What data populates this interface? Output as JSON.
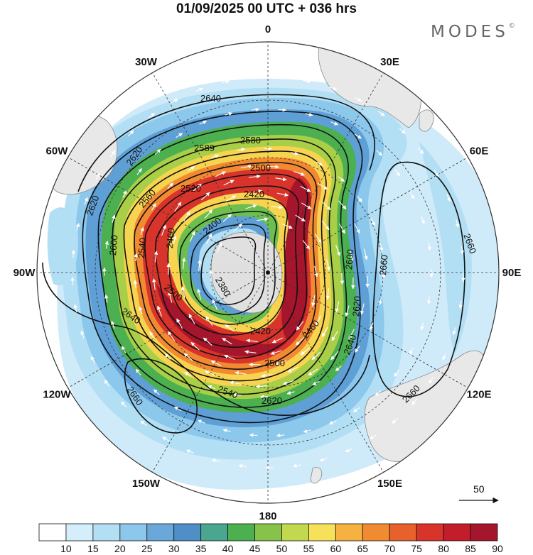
{
  "title": "01/09/2025  00 UTC  + 036 hrs",
  "brand": "MODES",
  "longitude_labels": [
    {
      "lon": "0",
      "angle": 0
    },
    {
      "lon": "30E",
      "angle": 30
    },
    {
      "lon": "60E",
      "angle": 60
    },
    {
      "lon": "90E",
      "angle": 90
    },
    {
      "lon": "120E",
      "angle": 120
    },
    {
      "lon": "150E",
      "angle": 150
    },
    {
      "lon": "180",
      "angle": 180
    },
    {
      "lon": "150W",
      "angle": 210
    },
    {
      "lon": "120W",
      "angle": 240
    },
    {
      "lon": "90W",
      "angle": 270
    },
    {
      "lon": "60W",
      "angle": 300
    },
    {
      "lon": "30W",
      "angle": 330
    }
  ],
  "contour_labels": [
    "2640",
    "2620",
    "2620",
    "2589",
    "2580",
    "2500",
    "2520",
    "2560",
    "2420",
    "2600",
    "2400",
    "2540",
    "2460",
    "2380",
    "2500",
    "2600",
    "2660",
    "2660",
    "2660",
    "2660",
    "2640",
    "2620",
    "2640",
    "2420",
    "2500",
    "2540",
    "2620",
    "2460"
  ],
  "reference_vector": "50",
  "colorbar": {
    "labels": [
      "10",
      "15",
      "20",
      "25",
      "30",
      "35",
      "40",
      "45",
      "50",
      "55",
      "60",
      "65",
      "70",
      "75",
      "80",
      "85",
      "90"
    ],
    "colors": [
      "#ffffff",
      "#d4eefb",
      "#b3dff5",
      "#8cc7ec",
      "#6aa8dc",
      "#4f8ec6",
      "#4aa68e",
      "#4cb050",
      "#87c24a",
      "#c2d84e",
      "#f7e15a",
      "#f5b240",
      "#f28a32",
      "#e8612c",
      "#d9342b",
      "#c31d2b",
      "#a5152b"
    ]
  }
}
